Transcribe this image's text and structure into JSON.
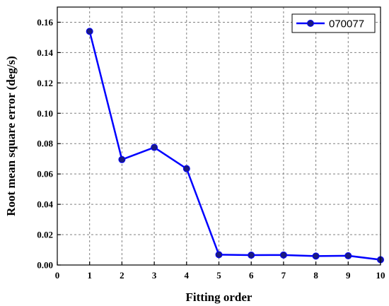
{
  "chart_data": {
    "type": "line",
    "title": "",
    "xlabel": "Fitting order",
    "ylabel": "Root mean square error (deg/s)",
    "xlim": [
      0,
      10
    ],
    "ylim": [
      0,
      0.17
    ],
    "xticks": [
      0,
      1,
      2,
      3,
      4,
      5,
      6,
      7,
      8,
      9,
      10
    ],
    "yticks": [
      0.0,
      0.02,
      0.04,
      0.06,
      0.08,
      0.1,
      0.12,
      0.14,
      0.16
    ],
    "ytick_labels": [
      "0.00",
      "0.02",
      "0.04",
      "0.06",
      "0.08",
      "0.10",
      "0.12",
      "0.14",
      "0.16"
    ],
    "grid": true,
    "legend_position": "top-right",
    "series": [
      {
        "name": "070077",
        "color": "#0000ff",
        "marker": "circle",
        "x": [
          1,
          2,
          3,
          4,
          5,
          6,
          7,
          8,
          9,
          10
        ],
        "y": [
          0.154,
          0.0695,
          0.0775,
          0.0635,
          0.0068,
          0.0065,
          0.0066,
          0.0059,
          0.0061,
          0.0035
        ]
      }
    ]
  }
}
